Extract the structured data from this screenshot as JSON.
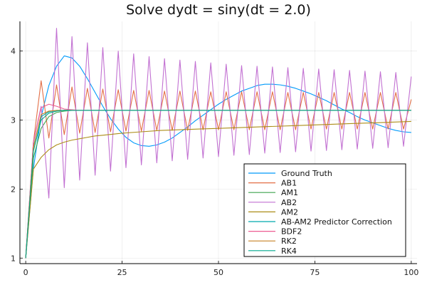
{
  "chart_data": {
    "type": "line",
    "title": "Solve dydt = siny(dt = 2.0)",
    "xlabel": "",
    "ylabel": "",
    "xlim": [
      -1.5,
      101.5
    ],
    "ylim": [
      0.92,
      4.43
    ],
    "x_ticks": [
      0,
      25,
      50,
      75,
      100
    ],
    "y_ticks": [
      1,
      2,
      3,
      4
    ],
    "x_tick_labels": [
      "0",
      "25",
      "50",
      "75",
      "100"
    ],
    "y_tick_labels": [
      "1",
      "2",
      "3",
      "4"
    ],
    "grid": true,
    "legend_position": "bottom-right",
    "series": [
      {
        "name": "Ground Truth",
        "color": "#009AFA",
        "x": [
          0,
          2,
          4,
          6,
          8,
          10,
          12,
          14,
          16,
          18,
          20,
          22,
          24,
          26,
          28,
          30,
          32,
          34,
          36,
          38,
          40,
          42,
          44,
          46,
          48,
          50,
          52,
          54,
          56,
          58,
          60,
          62,
          64,
          66,
          68,
          70,
          72,
          74,
          76,
          78,
          80,
          82,
          84,
          86,
          88,
          90,
          92,
          94,
          96,
          98,
          100
        ],
        "y": [
          1.0,
          2.3,
          3.05,
          3.5,
          3.78,
          3.93,
          3.9,
          3.78,
          3.6,
          3.4,
          3.2,
          3.02,
          2.87,
          2.75,
          2.67,
          2.63,
          2.62,
          2.64,
          2.68,
          2.74,
          2.82,
          2.9,
          2.99,
          3.07,
          3.15,
          3.23,
          3.3,
          3.36,
          3.42,
          3.46,
          3.5,
          3.52,
          3.52,
          3.51,
          3.49,
          3.46,
          3.42,
          3.38,
          3.33,
          3.28,
          3.22,
          3.16,
          3.11,
          3.05,
          3.0,
          2.96,
          2.92,
          2.88,
          2.85,
          2.83,
          2.82
        ]
      },
      {
        "name": "AB1",
        "color": "#E36F47",
        "x": [
          0,
          2,
          4,
          6,
          8,
          10,
          12,
          14,
          16,
          18,
          20,
          22,
          24,
          26,
          28,
          30,
          32,
          34,
          36,
          38,
          40,
          42,
          44,
          46,
          48,
          50,
          52,
          54,
          56,
          58,
          60,
          62,
          64,
          66,
          68,
          70,
          72,
          74,
          76,
          78,
          80,
          82,
          84,
          86,
          88,
          90,
          92,
          94,
          96,
          98,
          100
        ],
        "y": [
          1.0,
          2.68,
          3.57,
          2.74,
          3.51,
          2.79,
          3.48,
          2.81,
          3.46,
          2.82,
          3.45,
          2.83,
          3.44,
          2.84,
          3.43,
          2.84,
          3.43,
          2.85,
          3.42,
          2.85,
          3.42,
          2.85,
          3.42,
          2.86,
          3.41,
          2.86,
          3.41,
          2.86,
          3.41,
          2.86,
          3.41,
          2.86,
          3.41,
          2.86,
          3.4,
          2.86,
          3.4,
          2.87,
          3.4,
          2.87,
          3.4,
          2.87,
          3.4,
          2.87,
          3.4,
          2.87,
          3.4,
          2.87,
          3.4,
          2.87,
          3.3
        ]
      },
      {
        "name": "AM1",
        "color": "#3EA44E",
        "x": [
          0,
          2,
          4,
          6,
          8,
          10,
          12,
          14,
          16,
          20,
          30,
          40,
          50,
          60,
          70,
          80,
          90,
          100
        ],
        "y": [
          1.0,
          2.45,
          2.88,
          3.05,
          3.11,
          3.13,
          3.14,
          3.14,
          3.14,
          3.14,
          3.14,
          3.14,
          3.14,
          3.14,
          3.14,
          3.14,
          3.14,
          3.14
        ]
      },
      {
        "name": "AB2",
        "color": "#C271D2",
        "x": [
          0,
          2,
          4,
          6,
          8,
          10,
          12,
          14,
          16,
          18,
          20,
          22,
          24,
          26,
          28,
          30,
          32,
          34,
          36,
          38,
          40,
          42,
          44,
          46,
          48,
          50,
          52,
          54,
          56,
          58,
          60,
          62,
          64,
          66,
          68,
          70,
          72,
          74,
          76,
          78,
          80,
          82,
          84,
          86,
          88,
          90,
          92,
          94,
          96,
          98,
          100
        ],
        "y": [
          1.0,
          2.68,
          3.2,
          1.87,
          4.33,
          2.02,
          4.21,
          2.13,
          4.12,
          2.2,
          4.05,
          2.26,
          4.0,
          2.31,
          3.96,
          2.35,
          3.92,
          2.38,
          3.89,
          2.41,
          3.87,
          2.43,
          3.85,
          2.45,
          3.83,
          2.47,
          3.81,
          2.49,
          3.79,
          2.5,
          3.78,
          2.52,
          3.77,
          2.53,
          3.76,
          2.54,
          3.75,
          2.55,
          3.74,
          2.56,
          3.73,
          2.57,
          3.72,
          2.58,
          3.71,
          2.59,
          3.7,
          2.6,
          3.69,
          2.62,
          3.63
        ]
      },
      {
        "name": "AM2",
        "color": "#AC8D18",
        "x": [
          0,
          2,
          4,
          6,
          8,
          10,
          12,
          14,
          16,
          18,
          20,
          25,
          30,
          35,
          40,
          45,
          50,
          55,
          60,
          65,
          70,
          75,
          80,
          85,
          90,
          95,
          100
        ],
        "y": [
          1.0,
          2.29,
          2.46,
          2.57,
          2.64,
          2.68,
          2.71,
          2.73,
          2.75,
          2.77,
          2.78,
          2.81,
          2.83,
          2.85,
          2.86,
          2.87,
          2.88,
          2.89,
          2.9,
          2.91,
          2.92,
          2.93,
          2.94,
          2.95,
          2.96,
          2.97,
          2.98
        ]
      },
      {
        "name": "AB-AM2 Predictor Correction",
        "color": "#00A9AD",
        "x": [
          0,
          2,
          4,
          6,
          8,
          10,
          12,
          14,
          20,
          30,
          40,
          50,
          60,
          70,
          80,
          90,
          100
        ],
        "y": [
          1.0,
          2.62,
          3.05,
          3.12,
          3.14,
          3.14,
          3.14,
          3.14,
          3.14,
          3.14,
          3.14,
          3.14,
          3.14,
          3.14,
          3.14,
          3.14,
          3.14
        ]
      },
      {
        "name": "BDF2",
        "color": "#ED5D92",
        "x": [
          0,
          2,
          4,
          6,
          8,
          10,
          12,
          14,
          20,
          30,
          40,
          50,
          60,
          70,
          80,
          90,
          100
        ],
        "y": [
          1.0,
          2.68,
          3.18,
          3.23,
          3.2,
          3.16,
          3.15,
          3.14,
          3.14,
          3.14,
          3.14,
          3.14,
          3.14,
          3.14,
          3.14,
          3.14,
          3.14
        ]
      },
      {
        "name": "RK2",
        "color": "#C68225",
        "x": [
          0,
          2,
          4,
          6,
          8,
          10,
          12,
          14,
          20,
          30,
          40,
          50,
          60,
          70,
          80,
          90,
          100
        ],
        "y": [
          1.0,
          2.6,
          3.08,
          3.13,
          3.14,
          3.14,
          3.14,
          3.14,
          3.14,
          3.14,
          3.14,
          3.14,
          3.14,
          3.14,
          3.14,
          3.14,
          3.14
        ]
      },
      {
        "name": "RK4",
        "color": "#00A98D",
        "x": [
          0,
          2,
          4,
          6,
          8,
          10,
          12,
          14,
          20,
          30,
          40,
          50,
          60,
          70,
          80,
          90,
          100
        ],
        "y": [
          1.0,
          2.55,
          3.0,
          3.1,
          3.13,
          3.14,
          3.14,
          3.14,
          3.14,
          3.14,
          3.14,
          3.14,
          3.14,
          3.14,
          3.14,
          3.14,
          3.14
        ]
      }
    ]
  }
}
